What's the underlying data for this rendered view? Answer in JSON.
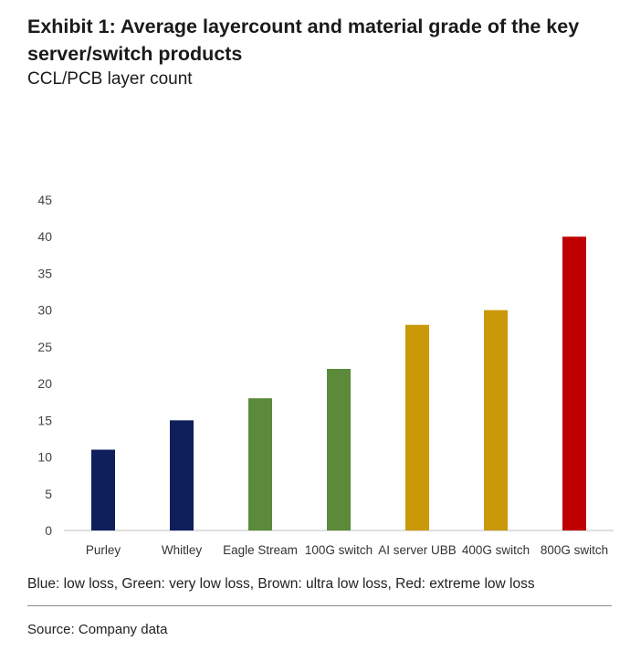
{
  "header": {
    "title": "Exhibit 1: Average layercount and material grade of the key server/switch products",
    "subtitle": "CCL/PCB layer count"
  },
  "chart_data": {
    "type": "bar",
    "categories": [
      "Purley",
      "Whitley",
      "Eagle Stream",
      "100G switch",
      "AI server UBB",
      "400G switch",
      "800G switch"
    ],
    "values": [
      11,
      15,
      18,
      22,
      28,
      30,
      40
    ],
    "bar_colors": [
      "#0f1f5c",
      "#0f1f5c",
      "#5b8a3a",
      "#5b8a3a",
      "#c9990a",
      "#c9990a",
      "#c00000"
    ],
    "ylim": [
      0,
      45
    ],
    "yticks": [
      "0",
      "5",
      "10",
      "15",
      "20",
      "25",
      "30",
      "35",
      "40",
      "45"
    ],
    "grid": false,
    "xlabel": "",
    "ylabel": ""
  },
  "footer": {
    "note": "Blue: low loss, Green: very low loss, Brown: ultra low loss, Red: extreme low loss",
    "source": "Source: Company data"
  }
}
